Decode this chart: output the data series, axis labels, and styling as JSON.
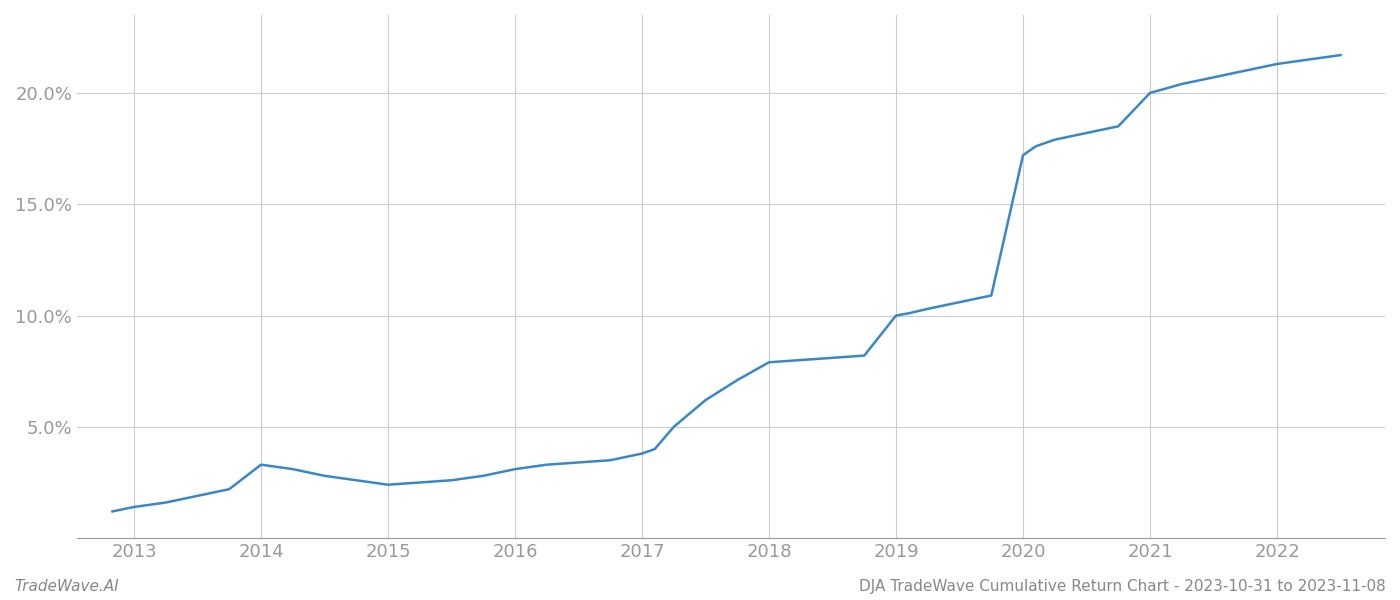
{
  "x_values": [
    2012.83,
    2013.0,
    2013.25,
    2013.5,
    2013.75,
    2014.0,
    2014.25,
    2014.5,
    2014.75,
    2015.0,
    2015.25,
    2015.5,
    2015.75,
    2016.0,
    2016.25,
    2016.5,
    2016.75,
    2017.0,
    2017.1,
    2017.25,
    2017.5,
    2017.75,
    2018.0,
    2018.25,
    2018.5,
    2018.75,
    2019.0,
    2019.1,
    2019.25,
    2019.5,
    2019.75,
    2020.0,
    2020.1,
    2020.25,
    2020.5,
    2020.75,
    2021.0,
    2021.25,
    2021.5,
    2021.75,
    2022.0,
    2022.25,
    2022.5
  ],
  "y_values": [
    0.012,
    0.014,
    0.016,
    0.019,
    0.022,
    0.033,
    0.031,
    0.028,
    0.026,
    0.024,
    0.025,
    0.026,
    0.028,
    0.031,
    0.033,
    0.034,
    0.035,
    0.038,
    0.04,
    0.05,
    0.062,
    0.071,
    0.079,
    0.08,
    0.081,
    0.082,
    0.1,
    0.101,
    0.103,
    0.106,
    0.109,
    0.172,
    0.176,
    0.179,
    0.182,
    0.185,
    0.2,
    0.204,
    0.207,
    0.21,
    0.213,
    0.215,
    0.217
  ],
  "line_color": "#3a87c8",
  "line_width": 1.8,
  "bg_color": "#ffffff",
  "plot_bg_color": "#ffffff",
  "grid_color": "#cccccc",
  "yticks": [
    0.05,
    0.1,
    0.15,
    0.2
  ],
  "ytick_labels": [
    "5.0%",
    "10.0%",
    "15.0%",
    "20.0%"
  ],
  "xtick_years": [
    2013,
    2014,
    2015,
    2016,
    2017,
    2018,
    2019,
    2020,
    2021,
    2022
  ],
  "xlim": [
    2012.55,
    2022.85
  ],
  "ylim": [
    0.0,
    0.235
  ],
  "footer_left": "TradeWave.AI",
  "footer_right": "DJA TradeWave Cumulative Return Chart - 2023-10-31 to 2023-11-08",
  "footer_fontsize": 11,
  "tick_fontsize": 13,
  "spine_color": "#999999"
}
